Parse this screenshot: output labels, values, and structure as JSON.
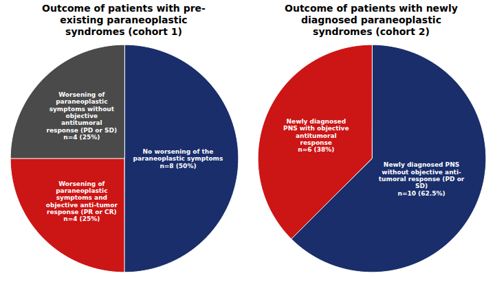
{
  "chart_data": [
    {
      "type": "pie",
      "title": "Outcome of patients with pre-\nexisting paraneoplastic\nsyndromes (cohort 1)",
      "categories": [
        "No worsening of the\nparaneoplastic symptoms\nn=8 (50%)",
        "Worsening of\nparaneoplastic\nsymptoms and\nobjective anti-tumor\nresponse (PR or CR)\nn=4 (25%)",
        "Worsening of\nparaneoplastic\nsymptoms without\nobjective\nantitumoral\nresponse (PD or SD)\nn=4 (25%)"
      ],
      "values": [
        50,
        25,
        25
      ],
      "colors": [
        "#1a2e6b",
        "#cc1515",
        "#4a4a4a"
      ]
    },
    {
      "type": "pie",
      "title": "Outcome of patients with newly\ndiagnosed paraneoplastic\nsyndromes (cohort 2)",
      "categories": [
        "Newly diagnosed PNS\nwithout objective anti-\ntumoral response (PD or\nSD)\nn=10 (62.5%)",
        "Newly diagnosed\nPNS with objective\nantitumoral\nresponse\nn=6 (38%)"
      ],
      "values": [
        62.5,
        37.5
      ],
      "colors": [
        "#1a2e6b",
        "#cc1515"
      ]
    }
  ]
}
